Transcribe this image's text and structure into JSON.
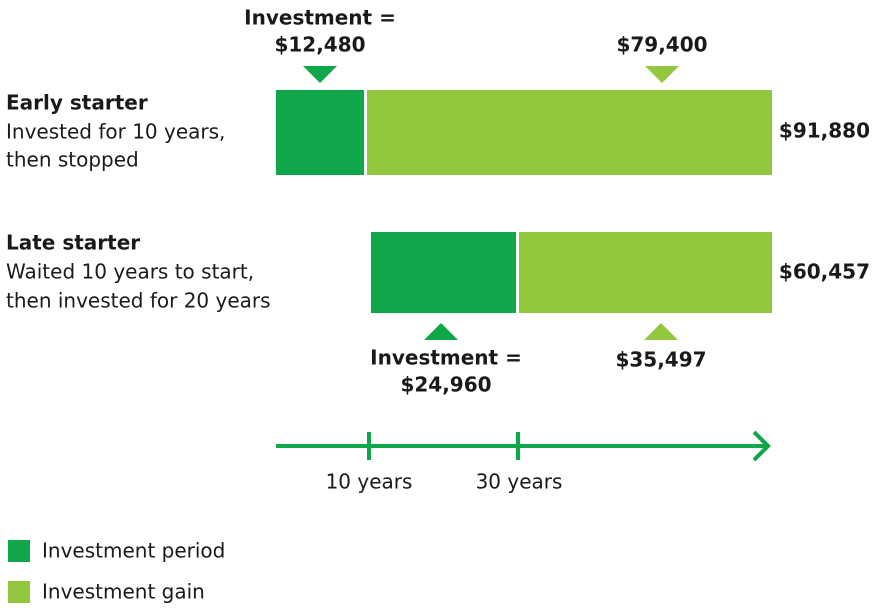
{
  "early": {
    "title": "Early starter",
    "description": [
      "Invested for 10 years,",
      "then stopped"
    ],
    "investment_label": [
      "Investment =",
      "$12,480"
    ],
    "gain": "$79,400",
    "total": "$91,880"
  },
  "late": {
    "title": "Late starter",
    "description": [
      "Waited 10 years to start,",
      "then invested for 20 years"
    ],
    "investment_label": [
      "Investment =",
      "$24,960"
    ],
    "gain": "$35,497",
    "total": "$60,457"
  },
  "timeline": {
    "ticks": [
      "10 years",
      "30 years"
    ]
  },
  "legend": [
    "Investment period",
    "Investment gain"
  ]
}
